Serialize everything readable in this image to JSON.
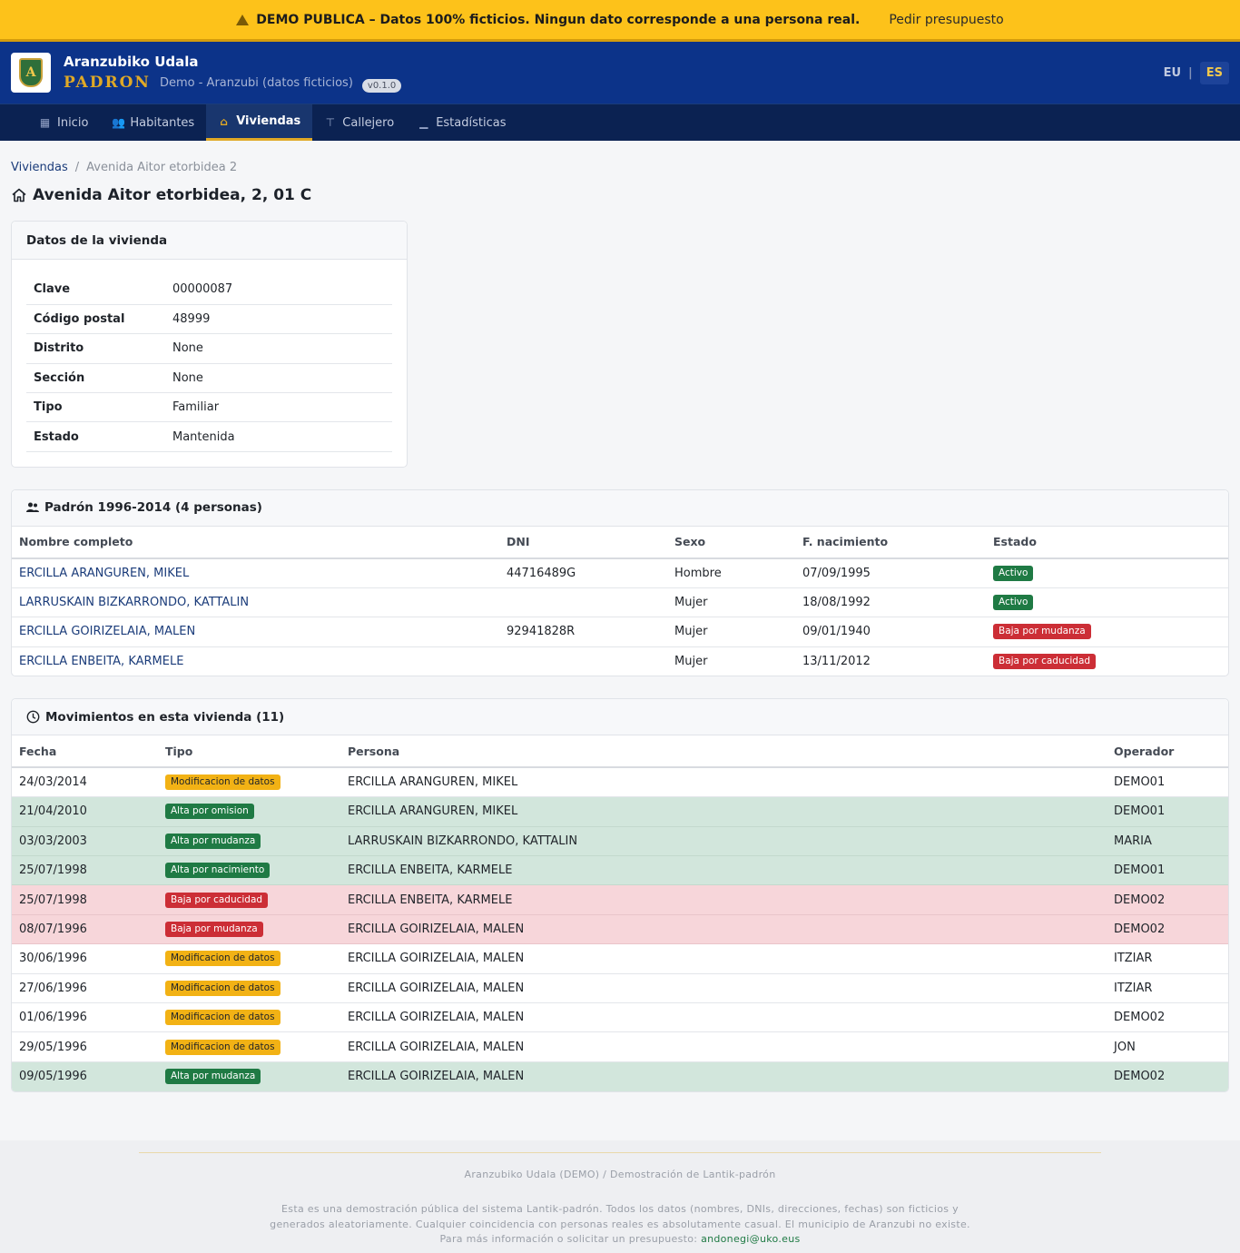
{
  "banner": {
    "warning": "DEMO PUBLICA – Datos 100% ficticios. Ningun dato corresponde a una persona real.",
    "link": "Pedir presupuesto"
  },
  "header": {
    "org_name": "Aranzubiko Udala",
    "app_name": "PADRON",
    "subtitle": "Demo - Aranzubi (datos ficticios)",
    "version": "v0.1.0",
    "logo_letter": "A",
    "lang_eu": "EU",
    "lang_sep": "|",
    "lang_es": "ES"
  },
  "nav": [
    {
      "label": "Inicio",
      "icon": "grid-icon",
      "glyph": "▦",
      "active": false
    },
    {
      "label": "Habitantes",
      "icon": "people-icon",
      "glyph": "👥",
      "active": false
    },
    {
      "label": "Viviendas",
      "icon": "house-icon",
      "glyph": "⌂",
      "active": true
    },
    {
      "label": "Callejero",
      "icon": "signpost-icon",
      "glyph": "⊤",
      "active": false
    },
    {
      "label": "Estadísticas",
      "icon": "bar-chart-icon",
      "glyph": "▁",
      "active": false
    }
  ],
  "breadcrumb": {
    "parent": "Viviendas",
    "sep": "/",
    "current": "Avenida Aitor etorbidea 2"
  },
  "page_title": "Avenida Aitor etorbidea, 2, 01 C",
  "info": {
    "title": "Datos de la vivienda",
    "rows": [
      {
        "k": "Clave",
        "v": "00000087"
      },
      {
        "k": "Código postal",
        "v": "48999"
      },
      {
        "k": "Distrito",
        "v": "None"
      },
      {
        "k": "Sección",
        "v": "None"
      },
      {
        "k": "Tipo",
        "v": "Familiar"
      },
      {
        "k": "Estado",
        "v": "Mantenida"
      }
    ]
  },
  "padron": {
    "title": "Padrón 1996-2014 (4 personas)",
    "headers": [
      "Nombre completo",
      "DNI",
      "Sexo",
      "F. nacimiento",
      "Estado"
    ],
    "rows": [
      {
        "name": "ERCILLA ARANGUREN, MIKEL",
        "dni": "44716489G",
        "sexo": "Hombre",
        "fnac": "07/09/1995",
        "estado": "Activo",
        "color": "green"
      },
      {
        "name": "LARRUSKAIN BIZKARRONDO, KATTALIN",
        "dni": "",
        "sexo": "Mujer",
        "fnac": "18/08/1992",
        "estado": "Activo",
        "color": "green"
      },
      {
        "name": "ERCILLA GOIRIZELAIA, MALEN",
        "dni": "92941828R",
        "sexo": "Mujer",
        "fnac": "09/01/1940",
        "estado": "Baja por mudanza",
        "color": "red"
      },
      {
        "name": "ERCILLA ENBEITA, KARMELE",
        "dni": "",
        "sexo": "Mujer",
        "fnac": "13/11/2012",
        "estado": "Baja por caducidad",
        "color": "red"
      }
    ]
  },
  "movimientos": {
    "title": "Movimientos en esta vivienda (11)",
    "headers": [
      "Fecha",
      "Tipo",
      "Persona",
      "Operador"
    ],
    "rows": [
      {
        "fecha": "24/03/2014",
        "tipo": "Modificacion de datos",
        "persona": "ERCILLA ARANGUREN, MIKEL",
        "operador": "DEMO01",
        "kind": "yellow"
      },
      {
        "fecha": "21/04/2010",
        "tipo": "Alta por omision",
        "persona": "ERCILLA ARANGUREN, MIKEL",
        "operador": "DEMO01",
        "kind": "green"
      },
      {
        "fecha": "03/03/2003",
        "tipo": "Alta por mudanza",
        "persona": "LARRUSKAIN BIZKARRONDO, KATTALIN",
        "operador": "MARIA",
        "kind": "green"
      },
      {
        "fecha": "25/07/1998",
        "tipo": "Alta por nacimiento",
        "persona": "ERCILLA ENBEITA, KARMELE",
        "operador": "DEMO01",
        "kind": "green"
      },
      {
        "fecha": "25/07/1998",
        "tipo": "Baja por caducidad",
        "persona": "ERCILLA ENBEITA, KARMELE",
        "operador": "DEMO02",
        "kind": "red"
      },
      {
        "fecha": "08/07/1996",
        "tipo": "Baja por mudanza",
        "persona": "ERCILLA GOIRIZELAIA, MALEN",
        "operador": "DEMO02",
        "kind": "red"
      },
      {
        "fecha": "30/06/1996",
        "tipo": "Modificacion de datos",
        "persona": "ERCILLA GOIRIZELAIA, MALEN",
        "operador": "ITZIAR",
        "kind": "yellow"
      },
      {
        "fecha": "27/06/1996",
        "tipo": "Modificacion de datos",
        "persona": "ERCILLA GOIRIZELAIA, MALEN",
        "operador": "ITZIAR",
        "kind": "yellow"
      },
      {
        "fecha": "01/06/1996",
        "tipo": "Modificacion de datos",
        "persona": "ERCILLA GOIRIZELAIA, MALEN",
        "operador": "DEMO02",
        "kind": "yellow"
      },
      {
        "fecha": "29/05/1996",
        "tipo": "Modificacion de datos",
        "persona": "ERCILLA GOIRIZELAIA, MALEN",
        "operador": "JON",
        "kind": "yellow"
      },
      {
        "fecha": "09/05/1996",
        "tipo": "Alta por mudanza",
        "persona": "ERCILLA GOIRIZELAIA, MALEN",
        "operador": "DEMO02",
        "kind": "green"
      }
    ]
  },
  "footer": {
    "line1": "Aranzubiko Udala (DEMO) / Demostración de Lantik-padrón",
    "para1": "Esta es una demostración pública del sistema Lantik-padrón. Todos los datos (nombres, DNIs, direcciones, fechas) son ficticios y",
    "para2": "generados aleatoriamente. Cualquier coincidencia con personas reales es absolutamente casual. El municipio de Aranzubi no existe.",
    "para3": "Para más información o solicitar un presupuesto:",
    "email": "andonegi@uko.eus"
  },
  "colors": {
    "banner": "#fdc21a",
    "header": "#0c3389",
    "nav": "#0b2252",
    "accent": "#e0a926",
    "link": "#1b3c7a"
  }
}
